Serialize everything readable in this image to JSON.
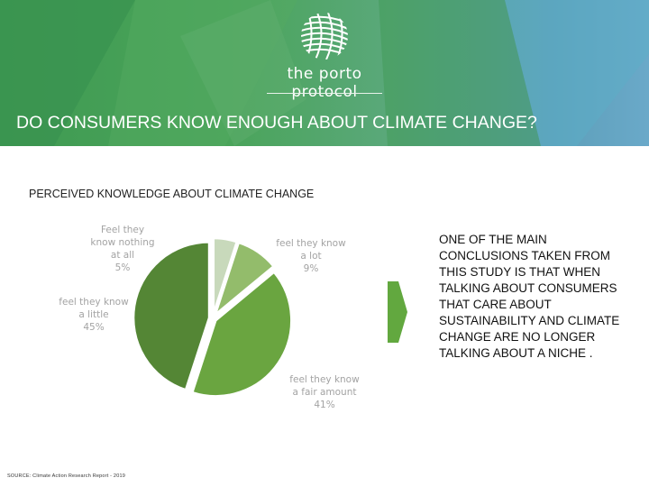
{
  "header": {
    "logo_text": "the porto protocol",
    "title": "DO CONSUMERS KNOW ENOUGH ABOUT CLIMATE CHANGE?"
  },
  "chart_data": {
    "type": "pie",
    "title": "PERCEIVED KNOWLEDGE ABOUT CLIMATE CHANGE",
    "slices": [
      {
        "label_lines": [
          "Feel they",
          "know nothing",
          "at all"
        ],
        "value_label": "5%",
        "value": 5,
        "color": "#c8d9bb"
      },
      {
        "label_lines": [
          "feel they know",
          "a lot"
        ],
        "value_label": "9%",
        "value": 9,
        "color": "#93bc6b"
      },
      {
        "label_lines": [
          "feel they know",
          "a fair amount"
        ],
        "value_label": "41%",
        "value": 41,
        "color": "#6aa540"
      },
      {
        "label_lines": [
          "feel they know",
          "a little"
        ],
        "value_label": "45%",
        "value": 45,
        "color": "#548635"
      }
    ]
  },
  "conclusion": "ONE OF THE MAIN CONCLUSIONS TAKEN FROM THIS STUDY IS THAT WHEN TALKING ABOUT CONSUMERS THAT CARE ABOUT SUSTAINABILITY AND CLIMATE CHANGE ARE NO LONGER TALKING ABOUT A NICHE .",
  "source": "SOURCE: Climate Action Research Report - 2019",
  "colors": {
    "header_green": "#4aa45a",
    "header_blue": "#6aa9c9",
    "arrow": "#62a83f"
  }
}
